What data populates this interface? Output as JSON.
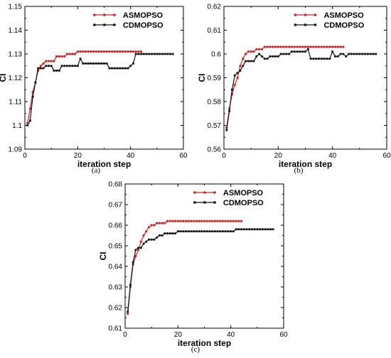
{
  "chart_data": [
    {
      "type": "line",
      "caption": "(a)",
      "xlabel": "iteration step",
      "ylabel": "CI",
      "xlim": [
        0,
        60
      ],
      "ylim": [
        1.09,
        1.15
      ],
      "xticks": [
        "0",
        "20",
        "40",
        "60"
      ],
      "yticks": [
        "1.09",
        "1.1",
        "1.11",
        "1.12",
        "1.13",
        "1.14",
        "1.15"
      ],
      "legend_position": "top-right",
      "series": [
        {
          "name": "ASMOPSO",
          "color": "#d42020",
          "marker": "circle",
          "x": [
            1,
            2,
            3,
            4,
            5,
            6,
            7,
            8,
            9,
            10,
            11,
            12,
            13,
            14,
            15,
            16,
            17,
            18,
            19,
            20,
            21,
            22,
            23,
            24,
            25,
            26,
            27,
            28,
            29,
            30,
            31,
            32,
            33,
            34,
            35,
            36,
            37,
            38,
            39,
            40,
            41,
            42,
            43,
            44
          ],
          "values": [
            1.101,
            1.107,
            1.114,
            1.118,
            1.123,
            1.125,
            1.126,
            1.127,
            1.127,
            1.127,
            1.127,
            1.129,
            1.129,
            1.129,
            1.129,
            1.13,
            1.13,
            1.13,
            1.13,
            1.131,
            1.131,
            1.131,
            1.131,
            1.131,
            1.131,
            1.131,
            1.131,
            1.131,
            1.131,
            1.131,
            1.131,
            1.131,
            1.131,
            1.131,
            1.131,
            1.131,
            1.131,
            1.131,
            1.131,
            1.131,
            1.131,
            1.131,
            1.131,
            1.131
          ]
        },
        {
          "name": "CDMOPSO",
          "color": "#111111",
          "marker": "square",
          "x": [
            1,
            2,
            3,
            4,
            5,
            6,
            7,
            8,
            9,
            10,
            11,
            12,
            13,
            14,
            15,
            16,
            17,
            18,
            19,
            20,
            21,
            22,
            23,
            24,
            25,
            26,
            27,
            28,
            29,
            30,
            31,
            32,
            33,
            34,
            35,
            36,
            37,
            38,
            39,
            40,
            41,
            42,
            43,
            44,
            45,
            46,
            47,
            48,
            49,
            50,
            51,
            52,
            53,
            54,
            55,
            56
          ],
          "values": [
            1.1,
            1.102,
            1.112,
            1.118,
            1.124,
            1.124,
            1.124,
            1.125,
            1.125,
            1.125,
            1.123,
            1.123,
            1.123,
            1.125,
            1.125,
            1.125,
            1.125,
            1.125,
            1.125,
            1.125,
            1.128,
            1.126,
            1.126,
            1.126,
            1.126,
            1.126,
            1.126,
            1.126,
            1.126,
            1.126,
            1.126,
            1.124,
            1.124,
            1.124,
            1.124,
            1.124,
            1.124,
            1.124,
            1.124,
            1.125,
            1.126,
            1.13,
            1.13,
            1.13,
            1.13,
            1.13,
            1.13,
            1.13,
            1.13,
            1.13,
            1.13,
            1.13,
            1.13,
            1.13,
            1.13,
            1.13
          ]
        }
      ]
    },
    {
      "type": "line",
      "caption": "(b)",
      "xlabel": "iteration step",
      "ylabel": "CI",
      "xlim": [
        0,
        60
      ],
      "ylim": [
        0.56,
        0.62
      ],
      "xticks": [
        "0",
        "20",
        "40",
        "60"
      ],
      "yticks": [
        "0.56",
        "0.57",
        "0.58",
        "0.59",
        "0.6",
        "0.61",
        "0.62"
      ],
      "legend_position": "top-right",
      "series": [
        {
          "name": "ASMOPSO",
          "color": "#d42020",
          "marker": "circle",
          "x": [
            1,
            2,
            3,
            4,
            5,
            6,
            7,
            8,
            9,
            10,
            11,
            12,
            13,
            14,
            15,
            16,
            17,
            18,
            19,
            20,
            21,
            22,
            23,
            24,
            25,
            26,
            27,
            28,
            29,
            30,
            31,
            32,
            33,
            34,
            35,
            36,
            37,
            38,
            39,
            40,
            41,
            42,
            43,
            44
          ],
          "values": [
            0.569,
            0.577,
            0.583,
            0.587,
            0.59,
            0.595,
            0.598,
            0.6,
            0.601,
            0.601,
            0.601,
            0.602,
            0.602,
            0.602,
            0.603,
            0.603,
            0.603,
            0.603,
            0.603,
            0.603,
            0.603,
            0.603,
            0.603,
            0.603,
            0.603,
            0.603,
            0.603,
            0.603,
            0.603,
            0.603,
            0.603,
            0.603,
            0.603,
            0.603,
            0.603,
            0.603,
            0.603,
            0.603,
            0.603,
            0.603,
            0.603,
            0.603,
            0.603,
            0.603
          ]
        },
        {
          "name": "CDMOPSO",
          "color": "#111111",
          "marker": "square",
          "x": [
            1,
            2,
            3,
            4,
            5,
            6,
            7,
            8,
            9,
            10,
            11,
            12,
            13,
            14,
            15,
            16,
            17,
            18,
            19,
            20,
            21,
            22,
            23,
            24,
            25,
            26,
            27,
            28,
            29,
            30,
            31,
            32,
            33,
            34,
            35,
            36,
            37,
            38,
            39,
            40,
            41,
            42,
            43,
            44,
            45,
            46,
            47,
            48,
            49,
            50,
            51,
            52,
            53,
            54,
            55,
            56
          ],
          "values": [
            0.568,
            0.576,
            0.585,
            0.591,
            0.592,
            0.593,
            0.595,
            0.597,
            0.597,
            0.597,
            0.597,
            0.599,
            0.6,
            0.599,
            0.598,
            0.598,
            0.599,
            0.599,
            0.599,
            0.599,
            0.6,
            0.6,
            0.6,
            0.6,
            0.601,
            0.601,
            0.601,
            0.601,
            0.601,
            0.601,
            0.602,
            0.598,
            0.598,
            0.598,
            0.598,
            0.598,
            0.598,
            0.598,
            0.598,
            0.601,
            0.599,
            0.599,
            0.6,
            0.6,
            0.599,
            0.6,
            0.6,
            0.6,
            0.6,
            0.6,
            0.6,
            0.6,
            0.6,
            0.6,
            0.6,
            0.6
          ]
        }
      ]
    },
    {
      "type": "line",
      "caption": "(c)",
      "xlabel": "iteration step",
      "ylabel": "CI",
      "xlim": [
        0,
        60
      ],
      "ylim": [
        0.61,
        0.68
      ],
      "xticks": [
        "0",
        "20",
        "40",
        "60"
      ],
      "yticks": [
        "0.61",
        "0.62",
        "0.63",
        "0.64",
        "0.65",
        "0.66",
        "0.67",
        "0.68"
      ],
      "legend_position": "top-right",
      "series": [
        {
          "name": "ASMOPSO",
          "color": "#d42020",
          "marker": "circle",
          "x": [
            1,
            2,
            3,
            4,
            5,
            6,
            7,
            8,
            9,
            10,
            11,
            12,
            13,
            14,
            15,
            16,
            17,
            18,
            19,
            20,
            21,
            22,
            23,
            24,
            25,
            26,
            27,
            28,
            29,
            30,
            31,
            32,
            33,
            34,
            35,
            36,
            37,
            38,
            39,
            40,
            41,
            42,
            43,
            44
          ],
          "values": [
            0.617,
            0.63,
            0.641,
            0.645,
            0.648,
            0.652,
            0.655,
            0.657,
            0.659,
            0.66,
            0.66,
            0.661,
            0.661,
            0.661,
            0.661,
            0.662,
            0.662,
            0.662,
            0.662,
            0.662,
            0.662,
            0.662,
            0.662,
            0.662,
            0.662,
            0.662,
            0.662,
            0.662,
            0.662,
            0.662,
            0.662,
            0.662,
            0.662,
            0.662,
            0.662,
            0.662,
            0.662,
            0.662,
            0.662,
            0.662,
            0.662,
            0.662,
            0.662,
            0.662
          ]
        },
        {
          "name": "CDMOPSO",
          "color": "#111111",
          "marker": "square",
          "x": [
            1,
            2,
            3,
            4,
            5,
            6,
            7,
            8,
            9,
            10,
            11,
            12,
            13,
            14,
            15,
            16,
            17,
            18,
            19,
            20,
            21,
            22,
            23,
            24,
            25,
            26,
            27,
            28,
            29,
            30,
            31,
            32,
            33,
            34,
            35,
            36,
            37,
            38,
            39,
            40,
            41,
            42,
            43,
            44,
            45,
            46,
            47,
            48,
            49,
            50,
            51,
            52,
            53,
            54,
            55,
            56
          ],
          "values": [
            0.618,
            0.631,
            0.642,
            0.648,
            0.649,
            0.649,
            0.651,
            0.652,
            0.653,
            0.653,
            0.653,
            0.654,
            0.655,
            0.655,
            0.656,
            0.656,
            0.656,
            0.656,
            0.656,
            0.657,
            0.657,
            0.657,
            0.657,
            0.657,
            0.657,
            0.657,
            0.657,
            0.657,
            0.657,
            0.657,
            0.657,
            0.657,
            0.657,
            0.657,
            0.657,
            0.657,
            0.657,
            0.657,
            0.657,
            0.657,
            0.657,
            0.658,
            0.658,
            0.658,
            0.658,
            0.658,
            0.658,
            0.658,
            0.658,
            0.658,
            0.658,
            0.658,
            0.658,
            0.658,
            0.658,
            0.658
          ]
        }
      ]
    }
  ]
}
